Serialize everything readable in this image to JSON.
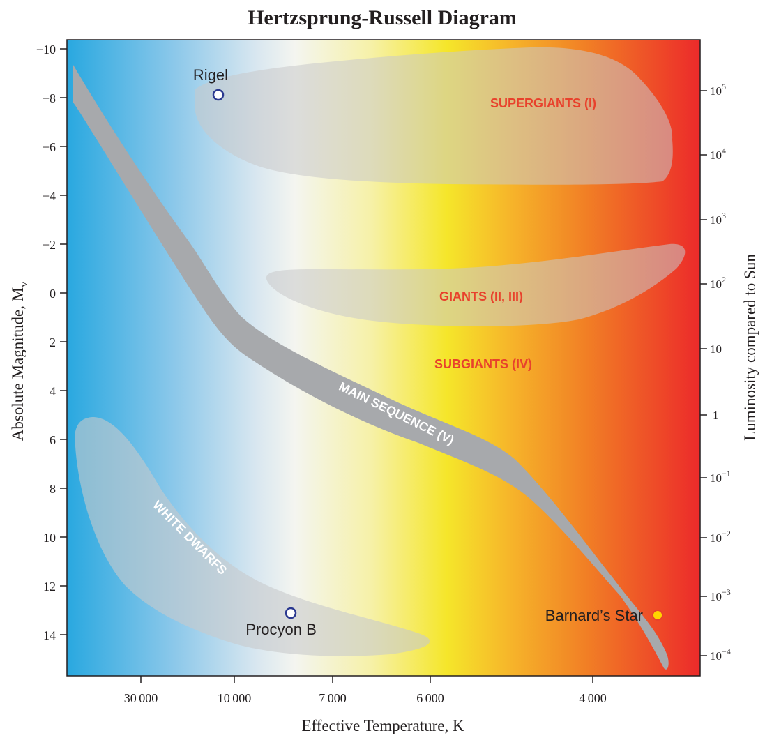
{
  "title": "Hertzsprung-Russell Diagram",
  "x_axis": {
    "label": "Effective Temperature, K",
    "ticks": [
      "30 000",
      "10 000",
      "7 000",
      "6 000",
      "4 000"
    ]
  },
  "y_axis_left": {
    "label_main": "Absolute Magnitude, M",
    "label_sub": "v",
    "ticks": [
      "−10",
      "−8",
      "−6",
      "−4",
      "−2",
      "0",
      "2",
      "4",
      "6",
      "8",
      "10",
      "12",
      "14"
    ]
  },
  "y_axis_right": {
    "label": "Luminosity compared to Sun",
    "ticks": [
      {
        "base": "10",
        "exp": "5"
      },
      {
        "base": "10",
        "exp": "4"
      },
      {
        "base": "10",
        "exp": "3"
      },
      {
        "base": "10",
        "exp": "2"
      },
      {
        "base": "10",
        "exp": ""
      },
      {
        "base": "1",
        "exp": ""
      },
      {
        "base": "10",
        "exp": "−1"
      },
      {
        "base": "10",
        "exp": "−2"
      },
      {
        "base": "10",
        "exp": "−3"
      },
      {
        "base": "10",
        "exp": "−4"
      }
    ]
  },
  "regions": {
    "supergiants": "SUPERGIANTS (I)",
    "giants": "GIANTS (II, III)",
    "subgiants": "SUBGIANTS (IV)",
    "main_sequence": "MAIN SEQUENCE (V)",
    "white_dwarfs": "WHITE DWARFS"
  },
  "stars": {
    "rigel": "Rigel",
    "procyon_b": "Procyon B",
    "barnards_star": "Barnard’s Star"
  },
  "colors": {
    "hot": "#29a8e0",
    "white": "#f5f7f2",
    "yellow": "#f5e62a",
    "orange": "#f28a22",
    "cool": "#ec2a2a",
    "main_sequence": "#a7a9ac",
    "region_label": "#e8412c",
    "star_ring": "#2b3990",
    "barnard_fill": "#ffd400"
  }
}
